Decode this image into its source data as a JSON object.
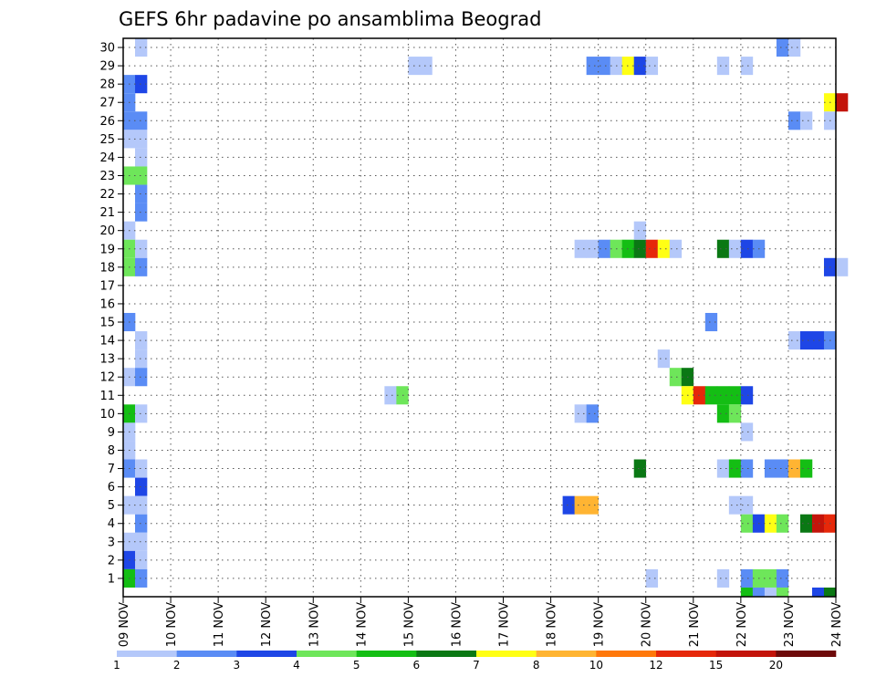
{
  "chart_data": {
    "type": "heatmap",
    "title": "GEFS 6hr padavine po ansamblima Beograd",
    "x_ticks": [
      "09 NOV",
      "10 NOV",
      "11 NOV",
      "12 NOV",
      "13 NOV",
      "14 NOV",
      "15 NOV",
      "16 NOV",
      "17 NOV",
      "18 NOV",
      "19 NOV",
      "20 NOV",
      "21 NOV",
      "22 NOV",
      "23 NOV",
      "24 NOV"
    ],
    "steps_per_day": 4,
    "y_range": [
      0,
      30
    ],
    "y_ticks": [
      1,
      2,
      3,
      4,
      5,
      6,
      7,
      8,
      9,
      10,
      11,
      12,
      13,
      14,
      15,
      16,
      17,
      18,
      19,
      20,
      21,
      22,
      23,
      24,
      25,
      26,
      27,
      28,
      29,
      30
    ],
    "grid": true,
    "legend_position": "bottom",
    "color_classes": [
      {
        "from": 1,
        "to": 2,
        "color": "#b4c8fa"
      },
      {
        "from": 2,
        "to": 3,
        "color": "#5a8cf5"
      },
      {
        "from": 3,
        "to": 4,
        "color": "#1e46e6"
      },
      {
        "from": 4,
        "to": 5,
        "color": "#6ee65a"
      },
      {
        "from": 5,
        "to": 6,
        "color": "#14be14"
      },
      {
        "from": 6,
        "to": 7,
        "color": "#0a7814"
      },
      {
        "from": 7,
        "to": 8,
        "color": "#ffff14"
      },
      {
        "from": 8,
        "to": 10,
        "color": "#ffb432"
      },
      {
        "from": 10,
        "to": 12,
        "color": "#ff780a"
      },
      {
        "from": 12,
        "to": 15,
        "color": "#e6280a"
      },
      {
        "from": 15,
        "to": 20,
        "color": "#c3140a"
      },
      {
        "from": 20,
        "to": null,
        "color": "#6e0a0a"
      }
    ],
    "legend_labels": [
      "1",
      "2",
      "3",
      "4",
      "5",
      "6",
      "7",
      "8",
      "10",
      "12",
      "15",
      "20"
    ],
    "cells": [
      [
        1,
        30,
        0
      ],
      [
        0,
        28,
        1
      ],
      [
        1,
        28,
        2
      ],
      [
        0,
        27,
        1
      ],
      [
        0,
        26,
        1
      ],
      [
        1,
        26,
        1
      ],
      [
        0,
        25,
        0
      ],
      [
        1,
        25,
        0
      ],
      [
        1,
        24,
        0
      ],
      [
        0,
        23,
        3
      ],
      [
        1,
        23,
        3
      ],
      [
        1,
        22,
        1
      ],
      [
        1,
        21,
        1
      ],
      [
        0,
        20,
        0
      ],
      [
        0,
        19,
        3
      ],
      [
        1,
        19,
        0
      ],
      [
        0,
        18,
        3
      ],
      [
        1,
        18,
        1
      ],
      [
        0,
        15,
        1
      ],
      [
        1,
        14,
        0
      ],
      [
        1,
        13,
        0
      ],
      [
        0,
        12,
        0
      ],
      [
        1,
        12,
        1
      ],
      [
        0,
        10,
        4
      ],
      [
        1,
        10,
        0
      ],
      [
        0,
        9,
        0
      ],
      [
        0,
        8,
        0
      ],
      [
        0,
        7,
        1
      ],
      [
        1,
        7,
        0
      ],
      [
        1,
        6,
        2
      ],
      [
        0,
        5,
        0
      ],
      [
        1,
        5,
        0
      ],
      [
        1,
        4,
        1
      ],
      [
        0,
        3,
        0
      ],
      [
        1,
        3,
        0
      ],
      [
        0,
        2,
        2
      ],
      [
        1,
        2,
        0
      ],
      [
        0,
        1,
        4
      ],
      [
        1,
        1,
        1
      ],
      [
        24,
        29,
        0
      ],
      [
        25,
        29,
        0
      ],
      [
        22,
        11,
        0
      ],
      [
        23,
        11,
        3
      ],
      [
        39,
        29,
        1
      ],
      [
        40,
        29,
        1
      ],
      [
        41,
        29,
        0
      ],
      [
        42,
        29,
        6
      ],
      [
        43,
        29,
        2
      ],
      [
        44,
        29,
        0
      ],
      [
        50,
        29,
        0
      ],
      [
        52,
        29,
        0
      ],
      [
        38,
        19,
        0
      ],
      [
        39,
        19,
        0
      ],
      [
        40,
        19,
        1
      ],
      [
        41,
        19,
        3
      ],
      [
        42,
        19,
        4
      ],
      [
        43,
        19,
        5
      ],
      [
        44,
        19,
        9
      ],
      [
        45,
        19,
        6
      ],
      [
        46,
        19,
        0
      ],
      [
        50,
        19,
        5
      ],
      [
        51,
        19,
        0
      ],
      [
        52,
        19,
        2
      ],
      [
        53,
        19,
        1
      ],
      [
        43,
        20,
        0
      ],
      [
        49,
        15,
        1
      ],
      [
        45,
        13,
        0
      ],
      [
        46,
        12,
        3
      ],
      [
        47,
        12,
        5
      ],
      [
        47,
        11,
        6
      ],
      [
        48,
        11,
        9
      ],
      [
        49,
        11,
        4
      ],
      [
        50,
        11,
        4
      ],
      [
        51,
        11,
        4
      ],
      [
        52,
        11,
        2
      ],
      [
        38,
        10,
        0
      ],
      [
        39,
        10,
        1
      ],
      [
        50,
        10,
        4
      ],
      [
        51,
        10,
        3
      ],
      [
        52,
        9,
        0
      ],
      [
        43,
        7,
        5
      ],
      [
        50,
        7,
        0
      ],
      [
        51,
        7,
        4
      ],
      [
        52,
        7,
        1
      ],
      [
        54,
        7,
        1
      ],
      [
        55,
        7,
        1
      ],
      [
        56,
        7,
        7
      ],
      [
        57,
        7,
        4
      ],
      [
        37,
        5,
        2
      ],
      [
        38,
        5,
        7
      ],
      [
        39,
        5,
        7
      ],
      [
        51,
        5,
        0
      ],
      [
        52,
        5,
        0
      ],
      [
        52,
        4,
        3
      ],
      [
        53,
        4,
        2
      ],
      [
        54,
        4,
        6
      ],
      [
        55,
        4,
        3
      ],
      [
        57,
        4,
        5
      ],
      [
        58,
        4,
        10
      ],
      [
        59,
        4,
        9
      ],
      [
        44,
        1,
        0
      ],
      [
        50,
        1,
        0
      ],
      [
        52,
        1,
        1
      ],
      [
        53,
        1,
        3
      ],
      [
        54,
        1,
        3
      ],
      [
        55,
        1,
        1
      ],
      [
        52,
        0,
        4
      ],
      [
        53,
        0,
        1
      ],
      [
        54,
        0,
        0
      ],
      [
        55,
        0,
        3
      ],
      [
        58,
        0,
        2
      ],
      [
        59,
        0,
        5
      ],
      [
        55,
        30,
        1
      ],
      [
        56,
        30,
        0
      ],
      [
        59,
        27,
        6
      ],
      [
        60,
        27,
        10
      ],
      [
        56,
        26,
        1
      ],
      [
        57,
        26,
        0
      ],
      [
        59,
        26,
        0
      ],
      [
        59,
        18,
        2
      ],
      [
        60,
        18,
        0
      ],
      [
        56,
        14,
        0
      ],
      [
        57,
        14,
        2
      ],
      [
        58,
        14,
        2
      ],
      [
        59,
        14,
        1
      ]
    ]
  }
}
